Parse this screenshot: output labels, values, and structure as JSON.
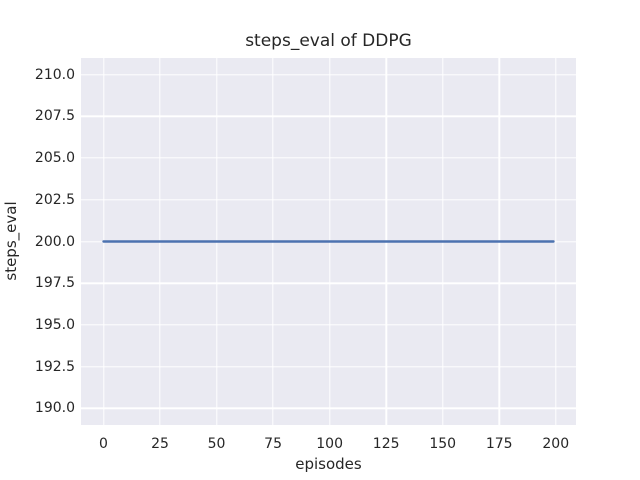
{
  "chart_data": {
    "type": "line",
    "title": "steps_eval of DDPG",
    "xlabel": "episodes",
    "ylabel": "steps_eval",
    "x_tick_labels": [
      "0",
      "25",
      "50",
      "75",
      "100",
      "125",
      "150",
      "175",
      "200"
    ],
    "y_tick_labels": [
      "210.0",
      "207.5",
      "205.0",
      "202.5",
      "200.0",
      "197.5",
      "195.0",
      "192.5",
      "190.0"
    ],
    "xlim": [
      -9.95,
      208.95
    ],
    "ylim": [
      189,
      211
    ],
    "grid": true,
    "legend": false,
    "series": [
      {
        "name": "steps_eval",
        "x": [
          0,
          199
        ],
        "y": [
          200,
          200
        ],
        "color": "#4c72b0"
      }
    ]
  },
  "style": {
    "figure_background": "#ffffff",
    "axes_background": "#eaeaf2",
    "grid_color": "#ffffff",
    "text_color": "#262626",
    "line_color": "#4c72b0"
  }
}
